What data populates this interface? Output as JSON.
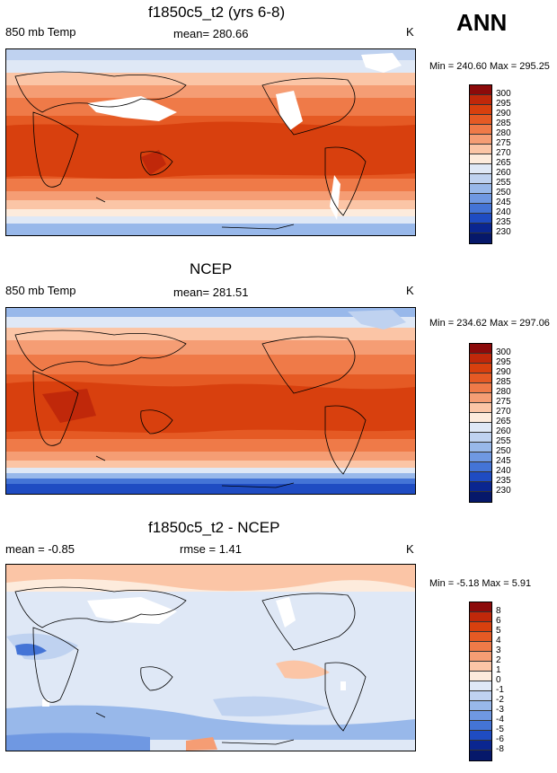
{
  "season": "ANN",
  "panels": [
    {
      "title": "f1850c5_t2 (yrs 6-8)",
      "left": "850 mb Temp",
      "center": "mean= 280.66",
      "units": "K",
      "minmax": "Min = 240.60 Max = 295.25",
      "levels": [
        "300",
        "295",
        "290",
        "285",
        "280",
        "275",
        "270",
        "265",
        "260",
        "255",
        "250",
        "245",
        "240",
        "235",
        "230"
      ],
      "colors": [
        "#8c0a0a",
        "#c0280a",
        "#d8400e",
        "#e55a24",
        "#ef7a48",
        "#f59d74",
        "#fbc5a6",
        "#fdebdc",
        "#dfe8f6",
        "#bfd2f0",
        "#98b8ea",
        "#6f98e2",
        "#4474d6",
        "#1f4cc2",
        "#0a2690",
        "#06186a"
      ]
    },
    {
      "title": "NCEP",
      "left": "850 mb Temp",
      "center": "mean= 281.51",
      "units": "K",
      "minmax": "Min = 234.62 Max = 297.06",
      "levels": [
        "300",
        "295",
        "290",
        "285",
        "280",
        "275",
        "270",
        "265",
        "260",
        "255",
        "250",
        "245",
        "240",
        "235",
        "230"
      ],
      "colors": [
        "#8c0a0a",
        "#c0280a",
        "#d8400e",
        "#e55a24",
        "#ef7a48",
        "#f59d74",
        "#fbc5a6",
        "#fdebdc",
        "#dfe8f6",
        "#bfd2f0",
        "#98b8ea",
        "#6f98e2",
        "#4474d6",
        "#1f4cc2",
        "#0a2690",
        "#06186a"
      ]
    },
    {
      "title": "f1850c5_t2 - NCEP",
      "left": "mean =  -0.85",
      "center": "rmse =   1.41",
      "units": "K",
      "minmax": "Min =  -5.18 Max =   5.91",
      "levels": [
        "8",
        "6",
        "5",
        "4",
        "3",
        "2",
        "1",
        "0",
        "-1",
        "-2",
        "-3",
        "-4",
        "-5",
        "-6",
        "-8"
      ],
      "colors": [
        "#8c0a0a",
        "#c0280a",
        "#d8400e",
        "#e55a24",
        "#ef7a48",
        "#f59d74",
        "#fbc5a6",
        "#fdebdc",
        "#dfe8f6",
        "#bfd2f0",
        "#98b8ea",
        "#6f98e2",
        "#4474d6",
        "#1f4cc2",
        "#0a2690",
        "#06186a"
      ]
    }
  ],
  "chart_data": [
    {
      "type": "heatmap",
      "title": "f1850c5_t2 (yrs 6-8)",
      "variable": "850 mb Temp",
      "units": "K",
      "mean": 280.66,
      "min": 240.6,
      "max": 295.25,
      "contour_levels": [
        230,
        235,
        240,
        245,
        250,
        255,
        260,
        265,
        270,
        275,
        280,
        285,
        290,
        295,
        300
      ]
    },
    {
      "type": "heatmap",
      "title": "NCEP",
      "variable": "850 mb Temp",
      "units": "K",
      "mean": 281.51,
      "min": 234.62,
      "max": 297.06,
      "contour_levels": [
        230,
        235,
        240,
        245,
        250,
        255,
        260,
        265,
        270,
        275,
        280,
        285,
        290,
        295,
        300
      ]
    },
    {
      "type": "heatmap",
      "title": "f1850c5_t2 - NCEP",
      "units": "K",
      "mean": -0.85,
      "rmse": 1.41,
      "min": -5.18,
      "max": 5.91,
      "contour_levels": [
        -8,
        -6,
        -5,
        -4,
        -3,
        -2,
        -1,
        0,
        1,
        2,
        3,
        4,
        5,
        6,
        8
      ]
    }
  ]
}
